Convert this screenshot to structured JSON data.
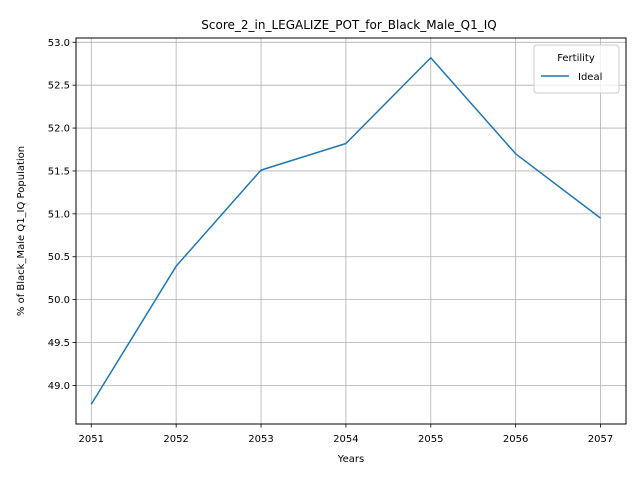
{
  "chart_data": {
    "type": "line",
    "title": "Score_2_in_LEGALIZE_POT_for_Black_Male_Q1_IQ",
    "xlabel": "Years",
    "ylabel": "% of Black_Male Q1_IQ Population",
    "x": [
      2051,
      2052,
      2053,
      2054,
      2055,
      2056,
      2057
    ],
    "x_tick_labels": [
      "2051",
      "2052",
      "2053",
      "2054",
      "2055",
      "2056",
      "2057"
    ],
    "y_ticks": [
      49.0,
      49.5,
      50.0,
      50.5,
      51.0,
      51.5,
      52.0,
      52.5,
      53.0
    ],
    "y_tick_labels": [
      "49.0",
      "49.5",
      "50.0",
      "50.5",
      "51.0",
      "51.5",
      "52.0",
      "52.5",
      "53.0"
    ],
    "xlim": [
      2050.82,
      2057.3
    ],
    "ylim": [
      48.55,
      53.05
    ],
    "grid": true,
    "legend": {
      "title": "Fertility",
      "placement": "top-right"
    },
    "series": [
      {
        "name": "Ideal",
        "color": "#1f77b4",
        "values": [
          48.78,
          50.39,
          51.51,
          51.82,
          52.82,
          51.7,
          50.95
        ]
      }
    ]
  }
}
